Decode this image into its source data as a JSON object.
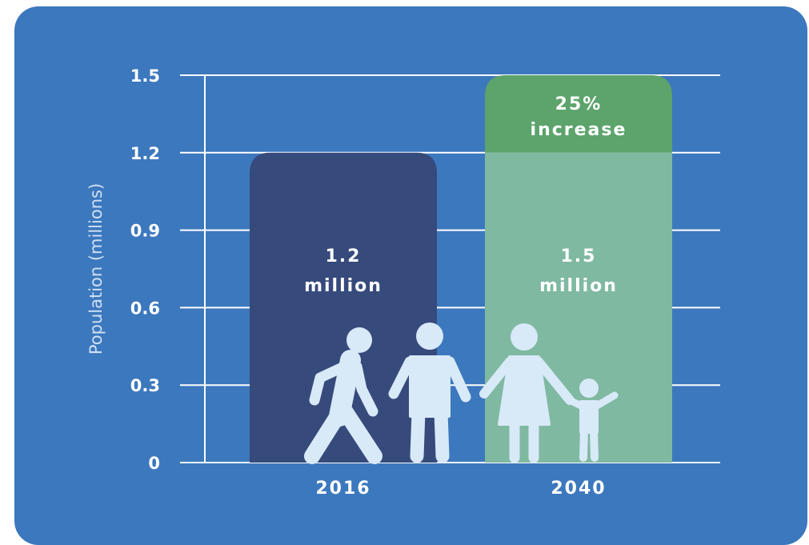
{
  "chart_data": {
    "type": "bar",
    "ylabel": "Population (millions)",
    "ylim": [
      0,
      1.5
    ],
    "yticks": [
      0,
      0.3,
      0.6,
      0.9,
      1.2,
      1.5
    ],
    "ytick_labels": [
      "0",
      "0.3",
      "0.6",
      "0.9",
      "1.2",
      "1.5"
    ],
    "categories": [
      "2016",
      "2040"
    ],
    "values": [
      1.2,
      1.5
    ],
    "data_labels": [
      [
        "1.2",
        "million"
      ],
      [
        "1.5",
        "million"
      ]
    ],
    "increase": {
      "from": 1.2,
      "to": 1.5,
      "label": [
        "25%",
        "increase"
      ]
    },
    "grid": true
  },
  "icons": [
    "walking-person-icon",
    "standing-man-icon",
    "woman-icon",
    "child-icon"
  ],
  "colors": {
    "background": "#3c78bd",
    "bar_2016": "#364a7c",
    "bar_2040": "#7fb9a1",
    "increase_segment": "#5ca36c",
    "people": "#d8e9f8",
    "grid": "#ffffff"
  }
}
